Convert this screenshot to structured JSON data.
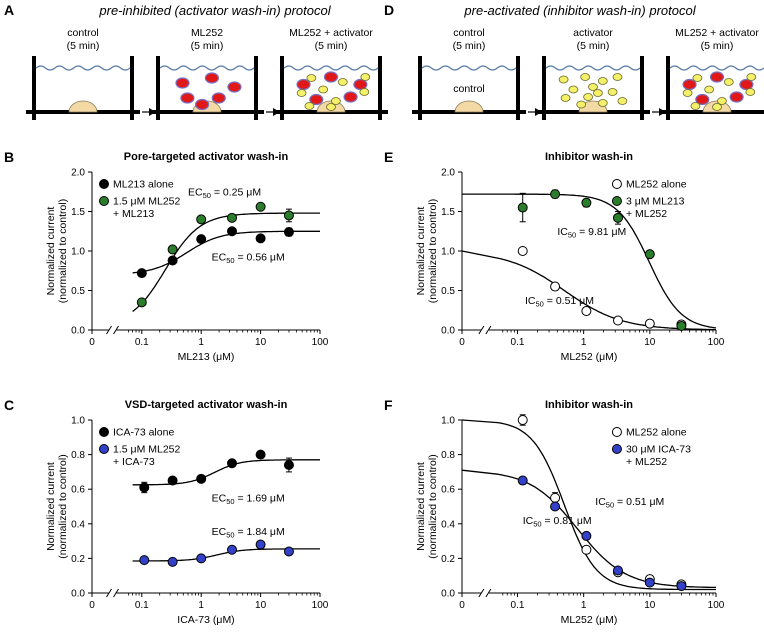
{
  "colors": {
    "black": "#000000",
    "green": "#2a7d2a",
    "blue": "#3340c8",
    "ml252_red": "#e01818",
    "ml252_outline": "#7a6fc0",
    "activator_yellow": "#f4f06a",
    "activator_outline": "#6a6a2a",
    "channel_tan": "#f3d9a4",
    "water_line": "#5a7fa8"
  },
  "protocols": [
    {
      "letter": "A",
      "title": "pre-inhibited (activator wash-in) protocol",
      "steps": [
        {
          "label1": "control",
          "label2": "(5 min)",
          "inner": ""
        },
        {
          "label1": "ML252",
          "label2": "(5 min)",
          "inner": ""
        },
        {
          "label1": "ML252 + activator",
          "label2": "(5 min)",
          "inner": ""
        }
      ]
    },
    {
      "letter": "D",
      "title": "pre-activated (inhibitor wash-in) protocol",
      "steps": [
        {
          "label1": "control",
          "label2": "(5 min)",
          "inner": "control"
        },
        {
          "label1": "activator",
          "label2": "(5 min)",
          "inner": ""
        },
        {
          "label1": "ML252 + activator",
          "label2": "(5 min)",
          "inner": ""
        }
      ]
    }
  ],
  "chart_data": [
    {
      "letter": "B",
      "type": "scatter",
      "title": "Pore-targeted activator wash-in",
      "xlabel": "ML213 (μM)",
      "ylabel1": "Normalized current",
      "ylabel2": "(normalized to control)",
      "xscale": "log",
      "xlim": [
        0.05,
        100
      ],
      "x_ticks": [
        "0.1",
        "1",
        "10",
        "100"
      ],
      "x_zero_label": "0",
      "ylim": [
        0,
        2.0
      ],
      "y_ticks": [
        "0.0",
        "0.5",
        "1.0",
        "1.5",
        "2.0"
      ],
      "legend_position": "top-left",
      "series": [
        {
          "name": "ML213 alone",
          "color": "#000000",
          "marker": "filled",
          "x": [
            0.1,
            0.33,
            1,
            3.3,
            10,
            30
          ],
          "y": [
            0.72,
            0.88,
            1.15,
            1.25,
            1.16,
            1.24
          ],
          "err": [
            0.02,
            0.02,
            0.03,
            0.03,
            0.03,
            0.05
          ],
          "fit": {
            "bottom": 0.7,
            "top": 1.25,
            "ec50": 0.56,
            "hill": 1.5
          }
        },
        {
          "name": "1.5 μM ML252 + ML213",
          "name_line1": "1.5 μM ML252",
          "name_line2": "+ ML213",
          "color": "#2a7d2a",
          "marker": "filled",
          "x": [
            0.1,
            0.33,
            1,
            3.3,
            10,
            30
          ],
          "y": [
            0.35,
            1.02,
            1.4,
            1.42,
            1.56,
            1.45
          ],
          "err": [
            0.02,
            0.03,
            0.03,
            0.04,
            0.04,
            0.08
          ],
          "fit": {
            "bottom": 0.05,
            "top": 1.48,
            "ec50": 0.25,
            "hill": 1.5
          }
        }
      ],
      "annotations": [
        {
          "prefix": "EC",
          "sub": "50",
          "text": " = 0.25 μM",
          "color": "#2a7d2a",
          "ax": 0.6,
          "ay": 1.7
        },
        {
          "prefix": "EC",
          "sub": "50",
          "text": " = 0.56 μM",
          "color": "#000000",
          "ax": 1.5,
          "ay": 0.88
        }
      ]
    },
    {
      "letter": "C",
      "type": "scatter",
      "title": "VSD-targeted activator wash-in",
      "xlabel": "ICA-73 (μM)",
      "ylabel1": "Normalized current",
      "ylabel2": "(normalized to control)",
      "xscale": "log",
      "xlim": [
        0.05,
        100
      ],
      "x_ticks": [
        "0.1",
        "1",
        "10",
        "100"
      ],
      "x_zero_label": "0",
      "ylim": [
        0,
        1.0
      ],
      "y_ticks": [
        "0.0",
        "0.2",
        "0.4",
        "0.6",
        "0.8",
        "1.0"
      ],
      "legend_position": "top-left",
      "series": [
        {
          "name": "ICA-73 alone",
          "color": "#000000",
          "marker": "filled",
          "x": [
            0.11,
            0.33,
            1,
            3.3,
            10,
            30
          ],
          "y": [
            0.61,
            0.65,
            0.66,
            0.75,
            0.8,
            0.74
          ],
          "err": [
            0.03,
            0.01,
            0.01,
            0.02,
            0.01,
            0.04
          ],
          "fit": {
            "bottom": 0.625,
            "top": 0.77,
            "ec50": 1.69,
            "hill": 2.0
          }
        },
        {
          "name": "1.5 μM ML252 + ICA-73",
          "name_line1": "1.5 μM ML252",
          "name_line2": "+ ICA-73",
          "color": "#3340c8",
          "marker": "filled",
          "x": [
            0.11,
            0.33,
            1,
            3.3,
            10,
            30
          ],
          "y": [
            0.19,
            0.18,
            0.2,
            0.25,
            0.28,
            0.24
          ],
          "err": [
            0.01,
            0.01,
            0.01,
            0.01,
            0.01,
            0.01
          ],
          "fit": {
            "bottom": 0.185,
            "top": 0.255,
            "ec50": 1.84,
            "hill": 2.0
          }
        }
      ],
      "annotations": [
        {
          "prefix": "EC",
          "sub": "50",
          "text": " = 1.69 μM",
          "color": "#000000",
          "ax": 1.5,
          "ay": 0.53
        },
        {
          "prefix": "EC",
          "sub": "50",
          "text": " = 1.84 μM",
          "color": "#3340c8",
          "ax": 1.5,
          "ay": 0.335
        }
      ]
    },
    {
      "letter": "E",
      "type": "scatter",
      "title": "Inhibitor wash-in",
      "xlabel": "ML252 (μM)",
      "ylabel1": "Normalized current",
      "ylabel2": "(normalized to control)",
      "xscale": "log",
      "xlim": [
        0.05,
        100
      ],
      "x_ticks": [
        "0.1",
        "1",
        "10",
        "100"
      ],
      "x_zero_label": "0",
      "ylim": [
        0,
        2.0
      ],
      "y_ticks": [
        "0.0",
        "0.5",
        "1.0",
        "1.5",
        "2.0"
      ],
      "legend_position": "top-right",
      "series": [
        {
          "name": "ML252 alone",
          "color": "#000000",
          "marker": "open",
          "x": [
            0.12,
            0.37,
            1.1,
            3.3,
            10,
            30
          ],
          "y": [
            1.0,
            0.55,
            0.24,
            0.12,
            0.08,
            0.07
          ],
          "err": [
            0.03,
            0.03,
            0.02,
            0.02,
            0.02,
            0.02
          ],
          "fit": {
            "bottom": 0.0,
            "top": 1.0,
            "ec50": 0.51,
            "hill": 1.0
          }
        },
        {
          "name": "3 μM ML213 + ML252",
          "name_line1": "3 μM ML213",
          "name_line2": "+ ML252",
          "color": "#2a7d2a",
          "marker": "filled",
          "x": [
            0.12,
            0.37,
            1.1,
            3.3,
            10,
            30
          ],
          "y": [
            1.55,
            1.72,
            1.61,
            1.42,
            0.96,
            0.05
          ],
          "err": [
            0.18,
            0.05,
            0.05,
            0.08,
            0.03,
            0.03
          ],
          "fit": {
            "bottom": 0.0,
            "top": 1.72,
            "ec50": 9.81,
            "hill": 1.8
          }
        }
      ],
      "annotations": [
        {
          "prefix": "IC",
          "sub": "50",
          "text": " = 9.81 μM",
          "color": "#2a7d2a",
          "ax": 0.4,
          "ay": 1.2
        },
        {
          "prefix": "IC",
          "sub": "50",
          "text": " = 0.51 μM",
          "color": "#000000",
          "ax": 0.13,
          "ay": 0.33
        }
      ]
    },
    {
      "letter": "F",
      "type": "scatter",
      "title": "Inhibitor wash-in",
      "xlabel": "ML252 (μM)",
      "ylabel1": "Normalized current",
      "ylabel2": "(normalized to control)",
      "xscale": "log",
      "xlim": [
        0.05,
        100
      ],
      "x_ticks": [
        "0.1",
        "1",
        "10",
        "100"
      ],
      "x_zero_label": "0",
      "ylim": [
        0,
        1.0
      ],
      "y_ticks": [
        "0.0",
        "0.2",
        "0.4",
        "0.6",
        "0.8",
        "1.0"
      ],
      "legend_position": "top-right",
      "series": [
        {
          "name": "ML252 alone",
          "color": "#000000",
          "marker": "open",
          "x": [
            0.12,
            0.37,
            1.1,
            3.3,
            10,
            30
          ],
          "y": [
            1.0,
            0.55,
            0.25,
            0.12,
            0.08,
            0.05
          ],
          "err": [
            0.03,
            0.03,
            0.02,
            0.01,
            0.01,
            0.01
          ],
          "fit": {
            "bottom": 0.02,
            "top": 1.0,
            "ec50": 0.51,
            "hill": 1.8
          }
        },
        {
          "name": "30 μM ICA-73 + ML252",
          "name_line1": "30 μM ICA-73",
          "name_line2": "+ ML252",
          "color": "#3340c8",
          "marker": "filled",
          "x": [
            0.12,
            0.37,
            1.1,
            3.3,
            10,
            30
          ],
          "y": [
            0.65,
            0.5,
            0.33,
            0.13,
            0.06,
            0.04
          ],
          "err": [
            0.01,
            0.01,
            0.01,
            0.01,
            0.01,
            0.01
          ],
          "fit": {
            "bottom": 0.03,
            "top": 0.71,
            "ec50": 0.81,
            "hill": 1.2
          }
        }
      ],
      "annotations": [
        {
          "prefix": "IC",
          "sub": "50",
          "text": " = 0.51 μM",
          "color": "#000000",
          "ax": 1.5,
          "ay": 0.51
        },
        {
          "prefix": "IC",
          "sub": "50",
          "text": " = 0.81 μM",
          "color": "#3340c8",
          "ax": 0.12,
          "ay": 0.4
        }
      ]
    }
  ]
}
